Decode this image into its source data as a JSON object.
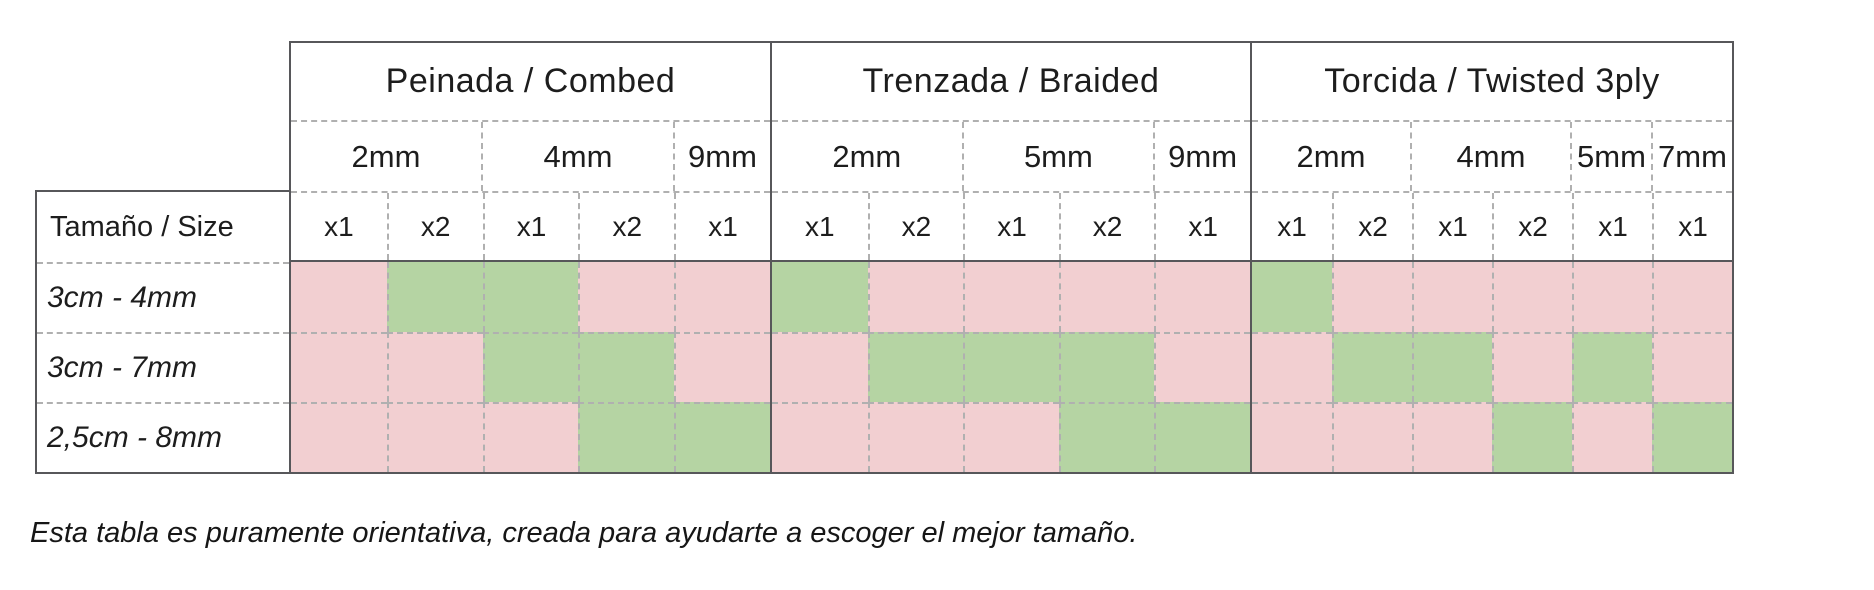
{
  "table": {
    "corner_label": "Tamaño / Size",
    "colors": {
      "suitable_green": "#b5d4a3",
      "not_suitable_pink": "#f2cfd1",
      "solid_border": "#57575a",
      "dashed_grid": "#b0b0b0"
    },
    "sections": [
      {
        "title": "Peinada / Combed",
        "groups": [
          {
            "label": "2mm",
            "span": 2
          },
          {
            "label": "4mm",
            "span": 2
          },
          {
            "label": "9mm",
            "span": 1
          }
        ],
        "strand_cols": [
          "x1",
          "x2",
          "x1",
          "x2",
          "x1"
        ]
      },
      {
        "title": "Trenzada / Braided",
        "groups": [
          {
            "label": "2mm",
            "span": 2
          },
          {
            "label": "5mm",
            "span": 2
          },
          {
            "label": "9mm",
            "span": 1
          }
        ],
        "strand_cols": [
          "x1",
          "x2",
          "x1",
          "x2",
          "x1"
        ]
      },
      {
        "title": "Torcida / Twisted 3ply",
        "groups": [
          {
            "label": "2mm",
            "span": 2
          },
          {
            "label": "4mm",
            "span": 2
          },
          {
            "label": "5mm",
            "span": 1
          },
          {
            "label": "7mm",
            "span": 1
          }
        ],
        "strand_cols": [
          "x1",
          "x2",
          "x1",
          "x2",
          "x1",
          "x1"
        ]
      }
    ],
    "rows": [
      {
        "label": "3cm - 4mm",
        "cells": [
          [
            0,
            1,
            1,
            0,
            0
          ],
          [
            1,
            0,
            0,
            0,
            0
          ],
          [
            1,
            0,
            0,
            0,
            0,
            0
          ]
        ]
      },
      {
        "label": "3cm - 7mm",
        "cells": [
          [
            0,
            0,
            1,
            1,
            0
          ],
          [
            0,
            1,
            1,
            1,
            0
          ],
          [
            0,
            1,
            1,
            0,
            1,
            0
          ]
        ]
      },
      {
        "label": "2,5cm - 8mm",
        "cells": [
          [
            0,
            0,
            0,
            1,
            1
          ],
          [
            0,
            0,
            0,
            1,
            1
          ],
          [
            0,
            0,
            0,
            1,
            0,
            1
          ]
        ]
      }
    ],
    "note": "Esta tabla es puramente orientativa, creada para ayudarte a escoger el mejor tamaño."
  },
  "chart_data": {
    "type": "table",
    "title": "",
    "row_header": "Tamaño / Size",
    "row_labels": [
      "3cm - 4mm",
      "3cm - 7mm",
      "2,5cm - 8mm"
    ],
    "column_groups": [
      {
        "section": "Peinada / Combed",
        "sizes": [
          {
            "size": "2mm",
            "strands": [
              "x1",
              "x2"
            ]
          },
          {
            "size": "4mm",
            "strands": [
              "x1",
              "x2"
            ]
          },
          {
            "size": "9mm",
            "strands": [
              "x1"
            ]
          }
        ]
      },
      {
        "section": "Trenzada / Braided",
        "sizes": [
          {
            "size": "2mm",
            "strands": [
              "x1",
              "x2"
            ]
          },
          {
            "size": "5mm",
            "strands": [
              "x1",
              "x2"
            ]
          },
          {
            "size": "9mm",
            "strands": [
              "x1"
            ]
          }
        ]
      },
      {
        "section": "Torcida / Twisted 3ply",
        "sizes": [
          {
            "size": "2mm",
            "strands": [
              "x1",
              "x2"
            ]
          },
          {
            "size": "4mm",
            "strands": [
              "x1",
              "x2"
            ]
          },
          {
            "size": "5mm",
            "strands": [
              "x1"
            ]
          },
          {
            "size": "7mm",
            "strands": [
              "x1"
            ]
          }
        ]
      }
    ],
    "values": [
      [
        0,
        1,
        1,
        0,
        0,
        1,
        0,
        0,
        0,
        0,
        1,
        0,
        0,
        0,
        0,
        0
      ],
      [
        0,
        0,
        1,
        1,
        0,
        0,
        1,
        1,
        1,
        0,
        0,
        1,
        1,
        0,
        1,
        0
      ],
      [
        0,
        0,
        0,
        1,
        1,
        0,
        0,
        0,
        1,
        1,
        0,
        0,
        0,
        1,
        0,
        1
      ]
    ],
    "value_legend": {
      "1": "green (recommended)",
      "0": "pink (not recommended)"
    },
    "note": "Esta tabla es puramente orientativa, creada para ayudarte a escoger el mejor tamaño."
  }
}
